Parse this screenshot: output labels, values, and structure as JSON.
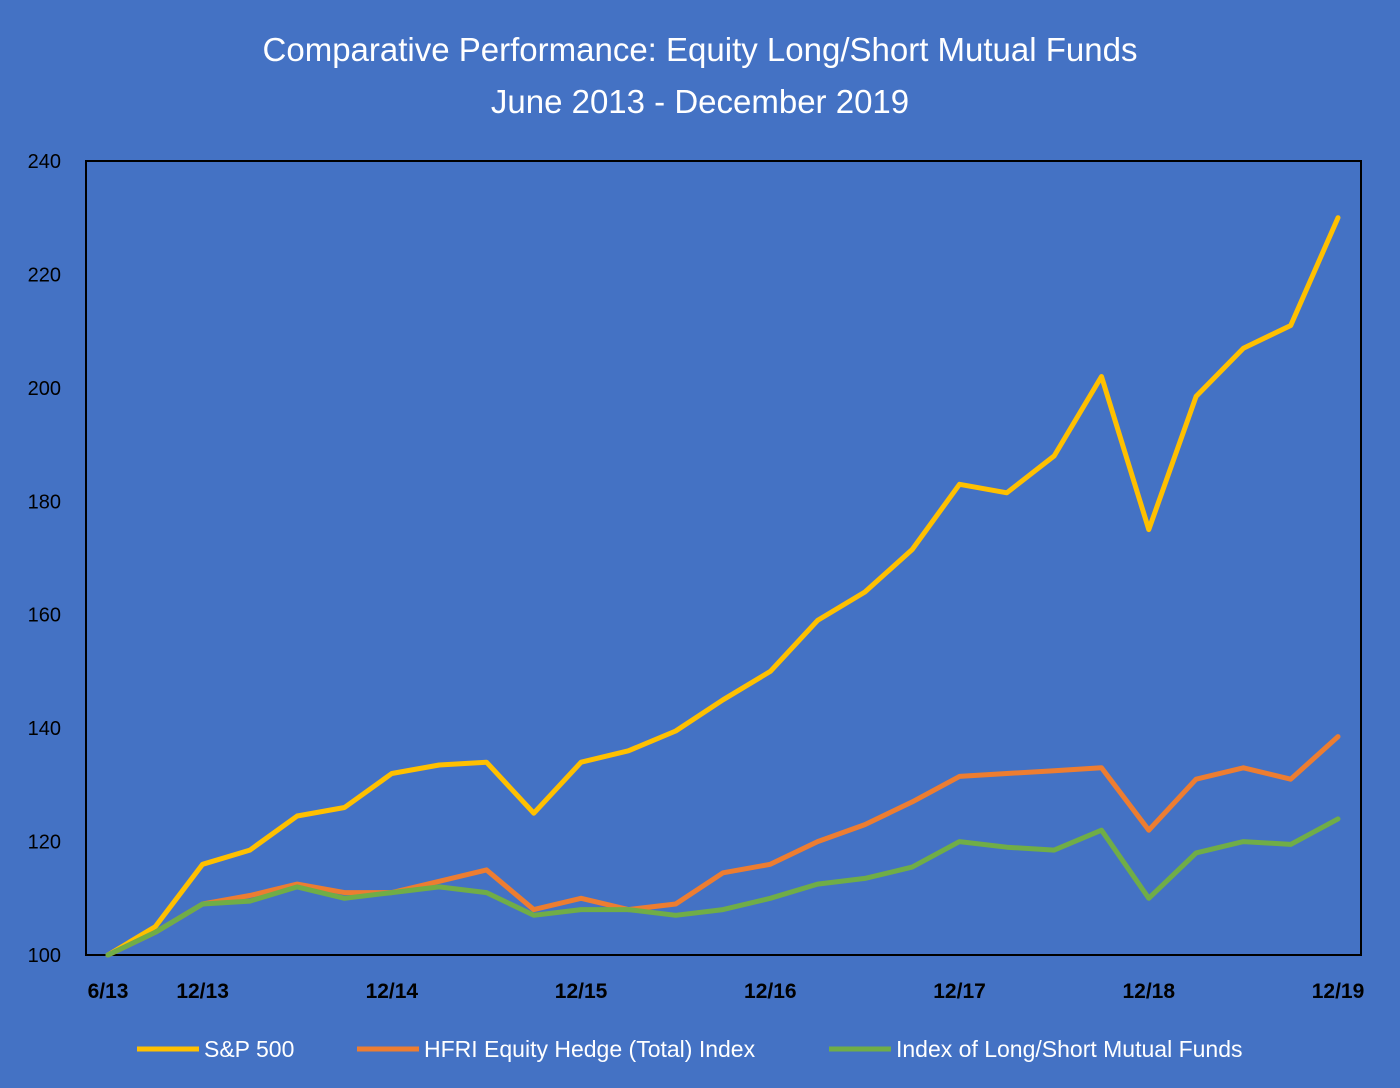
{
  "chart_data": {
    "type": "line",
    "title": "Comparative Performance: Equity Long/Short Mutual Funds",
    "subtitle": "June 2013 - December 2019",
    "xlabel": "",
    "ylabel": "",
    "ylim": [
      100,
      240
    ],
    "y_ticks": [
      "100",
      "120",
      "140",
      "160",
      "180",
      "200",
      "220",
      "240"
    ],
    "x_ticks": [
      {
        "label": "6/13",
        "index": 0
      },
      {
        "label": "12/13",
        "index": 2
      },
      {
        "label": "12/14",
        "index": 6
      },
      {
        "label": "12/15",
        "index": 10
      },
      {
        "label": "12/16",
        "index": 14
      },
      {
        "label": "12/17",
        "index": 18
      },
      {
        "label": "12/18",
        "index": 22
      },
      {
        "label": "12/19",
        "index": 26
      }
    ],
    "x": [
      "6/13",
      "9/13",
      "12/13",
      "3/14",
      "6/14",
      "9/14",
      "12/14",
      "3/15",
      "6/15",
      "9/15",
      "12/15",
      "3/16",
      "6/16",
      "9/16",
      "12/16",
      "3/17",
      "6/17",
      "9/17",
      "12/17",
      "3/18",
      "6/18",
      "9/18",
      "12/18",
      "3/19",
      "6/19",
      "9/19",
      "12/19"
    ],
    "grid": false,
    "legend_position": "bottom",
    "series": [
      {
        "name": "S&P 500",
        "color": "#FFC000",
        "values": [
          100,
          105,
          116,
          118.5,
          124.5,
          126,
          132,
          133.5,
          134,
          125,
          134,
          136,
          139.5,
          145,
          150,
          159,
          164,
          171.5,
          183,
          181.5,
          188,
          202,
          175,
          198.5,
          207,
          211,
          230
        ]
      },
      {
        "name": "HFRI Equity Hedge (Total) Index",
        "color": "#ED7D31",
        "values": [
          100,
          104,
          109,
          110.5,
          112.5,
          111,
          111,
          113,
          115,
          108,
          110,
          108,
          109,
          114.5,
          116,
          120,
          123,
          127,
          131.5,
          132,
          132.5,
          133,
          122,
          131,
          133,
          131,
          138.5
        ]
      },
      {
        "name": "Index of Long/Short Mutual Funds",
        "color": "#70AD47",
        "values": [
          100,
          104,
          109,
          109.5,
          112,
          110,
          111,
          112,
          111,
          107,
          108,
          108,
          107,
          108,
          110,
          112.5,
          113.5,
          115.5,
          120,
          119,
          118.5,
          122,
          110,
          118,
          120,
          119.5,
          124
        ]
      }
    ]
  }
}
